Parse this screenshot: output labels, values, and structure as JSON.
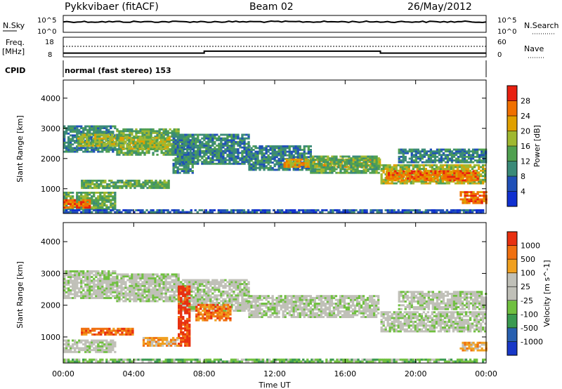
{
  "header": {
    "radar": "Pykkvibaer (fitACF)",
    "beam": "Beam 02",
    "date": "26/May/2012"
  },
  "noise_panel": {
    "left_label": "N.Sky",
    "right_label": "N.Search",
    "left_ticks": [
      "10^5",
      "10^0"
    ],
    "right_ticks": [
      "10^5",
      "10^0"
    ]
  },
  "freq_panel": {
    "left_label_1": "Freq.",
    "left_label_2": "[MHz]",
    "right_label": "Nave",
    "left_ticks": [
      "18",
      "8"
    ],
    "right_ticks": [
      "60",
      "0"
    ],
    "freq_steps": [
      {
        "t_start": 0,
        "t_end": 8,
        "mhz": 11
      },
      {
        "t_start": 8,
        "t_end": 18,
        "mhz": 12.5
      },
      {
        "t_start": 18,
        "t_end": 24,
        "mhz": 11
      }
    ]
  },
  "cpid": {
    "label": "CPID",
    "value": "normal (fast stereo) 153"
  },
  "chart_data": [
    {
      "type": "heatmap",
      "name": "power",
      "ylabel": "Slant Range [km]",
      "y_ticks": [
        "1000",
        "2000",
        "3000",
        "4000"
      ],
      "ylim": [
        180,
        4600
      ],
      "colorbar_label": "Power [dB]",
      "colorbar_ticks": [
        "4",
        "8",
        "12",
        "16",
        "20",
        "24",
        "28"
      ],
      "colorbar_colors": [
        "#1030d0",
        "#2050b8",
        "#3a8a78",
        "#50a050",
        "#a0b830",
        "#e0a000",
        "#f07000",
        "#e82010"
      ],
      "bands": [
        {
          "t_start": 0.0,
          "t_end": 3.0,
          "r_low": 2200,
          "r_high": 3100,
          "level": 2
        },
        {
          "t_start": 0.8,
          "t_end": 3.0,
          "r_low": 2400,
          "r_high": 2800,
          "level": 4
        },
        {
          "t_start": 3.0,
          "t_end": 6.5,
          "r_low": 2100,
          "r_high": 3000,
          "level": 3
        },
        {
          "t_start": 3.2,
          "t_end": 6.0,
          "r_low": 2300,
          "r_high": 2700,
          "level": 4
        },
        {
          "t_start": 6.5,
          "t_end": 10.5,
          "r_low": 1800,
          "r_high": 2800,
          "level": 2
        },
        {
          "t_start": 10.5,
          "t_end": 14.0,
          "r_low": 1600,
          "r_high": 2400,
          "level": 2
        },
        {
          "t_start": 12.5,
          "t_end": 17.9,
          "r_low": 1700,
          "r_high": 2000,
          "level": 5
        },
        {
          "t_start": 14.0,
          "t_end": 17.9,
          "r_low": 1500,
          "r_high": 2100,
          "level": 3
        },
        {
          "t_start": 18.0,
          "t_end": 24.0,
          "r_low": 1150,
          "r_high": 1800,
          "level": 4
        },
        {
          "t_start": 18.3,
          "t_end": 23.5,
          "r_low": 1250,
          "r_high": 1600,
          "level": 6
        },
        {
          "t_start": 19.0,
          "t_end": 24.0,
          "r_low": 1850,
          "r_high": 2300,
          "level": 2
        },
        {
          "t_start": 0.0,
          "t_end": 3.0,
          "r_low": 300,
          "r_high": 900,
          "level": 3
        },
        {
          "t_start": 0.0,
          "t_end": 1.5,
          "r_low": 350,
          "r_high": 650,
          "level": 6
        },
        {
          "t_start": 1.0,
          "t_end": 6.0,
          "r_low": 1000,
          "r_high": 1300,
          "level": 3
        },
        {
          "t_start": 0.0,
          "t_end": 24.0,
          "r_low": 200,
          "r_high": 320,
          "level": 1
        },
        {
          "t_start": 6.2,
          "t_end": 7.3,
          "r_low": 1500,
          "r_high": 2800,
          "level": 2
        },
        {
          "t_start": 22.5,
          "t_end": 24.0,
          "r_low": 500,
          "r_high": 900,
          "level": 6
        }
      ]
    },
    {
      "type": "heatmap",
      "name": "velocity",
      "ylabel": "Slant Range [km]",
      "y_ticks": [
        "1000",
        "2000",
        "3000",
        "4000"
      ],
      "ylim": [
        180,
        4600
      ],
      "colorbar_label": "Velocity [m s^-1]",
      "colorbar_ticks": [
        "1000",
        "500",
        "100",
        "25",
        "-25",
        "-100",
        "-500",
        "-1000"
      ],
      "colorbar_colors": [
        "#1838c8",
        "#2860b0",
        "#3a9a50",
        "#70c040",
        "#c0c0b8",
        "#c0c0b8",
        "#f0a020",
        "#f07010",
        "#e83010"
      ],
      "bands": [
        {
          "t_start": 0.0,
          "t_end": 3.0,
          "r_low": 2200,
          "r_high": 3100,
          "level": 4
        },
        {
          "t_start": 3.0,
          "t_end": 6.5,
          "r_low": 2100,
          "r_high": 3000,
          "level": 4
        },
        {
          "t_start": 6.5,
          "t_end": 10.5,
          "r_low": 1800,
          "r_high": 2800,
          "level": 4
        },
        {
          "t_start": 10.5,
          "t_end": 17.9,
          "r_low": 1600,
          "r_high": 2300,
          "level": 4
        },
        {
          "t_start": 18.0,
          "t_end": 24.0,
          "r_low": 1150,
          "r_high": 1800,
          "level": 4
        },
        {
          "t_start": 19.0,
          "t_end": 24.0,
          "r_low": 1850,
          "r_high": 2400,
          "level": 4
        },
        {
          "t_start": 0.0,
          "t_end": 3.0,
          "r_low": 500,
          "r_high": 900,
          "level": 4
        },
        {
          "t_start": 1.0,
          "t_end": 4.0,
          "r_low": 1050,
          "r_high": 1250,
          "level": 7
        },
        {
          "t_start": 6.5,
          "t_end": 7.2,
          "r_low": 700,
          "r_high": 2600,
          "level": 8
        },
        {
          "t_start": 7.5,
          "t_end": 9.5,
          "r_low": 1500,
          "r_high": 2000,
          "level": 7
        },
        {
          "t_start": 4.5,
          "t_end": 6.5,
          "r_low": 700,
          "r_high": 950,
          "level": 6
        },
        {
          "t_start": 0.0,
          "t_end": 24.0,
          "r_low": 200,
          "r_high": 320,
          "level": 3
        },
        {
          "t_start": 22.5,
          "t_end": 24.0,
          "r_low": 550,
          "r_high": 850,
          "level": 6
        }
      ]
    }
  ],
  "x_axis": {
    "label": "Time UT",
    "ticks": [
      "00:00",
      "04:00",
      "08:00",
      "12:00",
      "16:00",
      "20:00",
      "00:00"
    ],
    "xlim": [
      0,
      24
    ]
  }
}
